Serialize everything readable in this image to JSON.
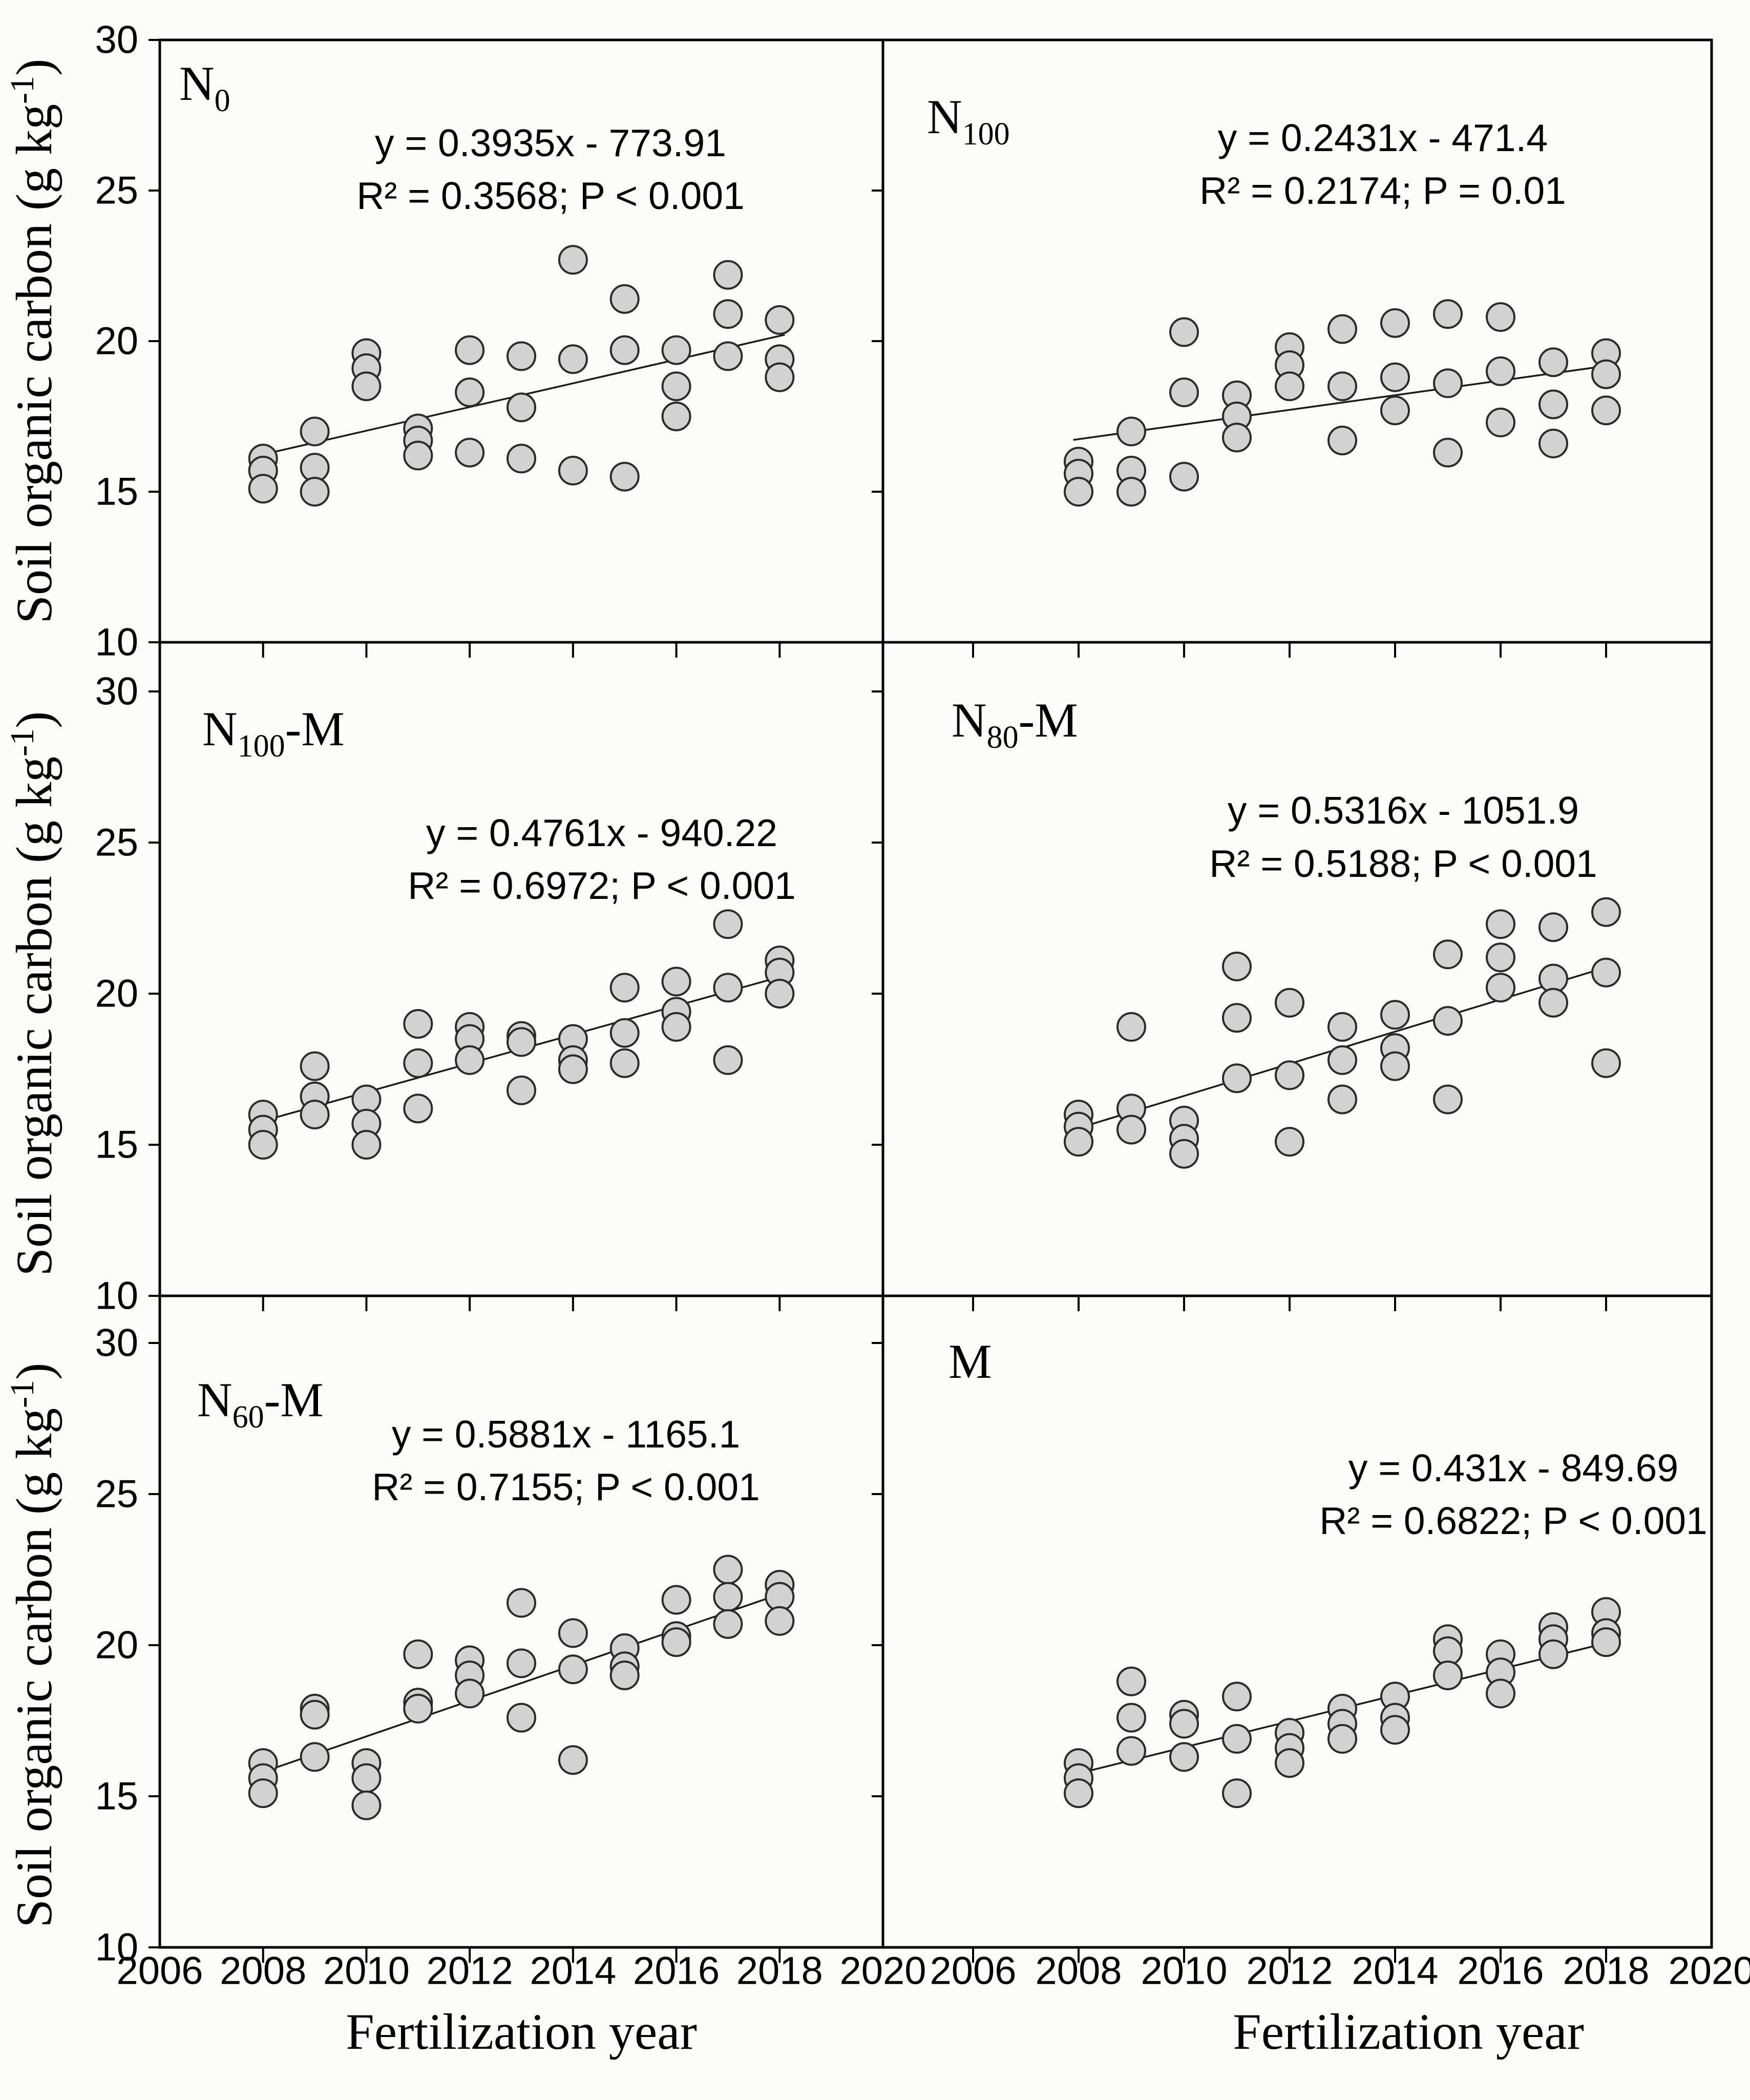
{
  "figure": {
    "y_axis_title": {
      "prefix": "Soil organic carbon (g kg",
      "sup": "-1",
      "suffix": ")"
    },
    "x_axis_title": "Fertilization year",
    "y_ticks": [
      30,
      25,
      20,
      15,
      10
    ],
    "x_ticks": [
      2006,
      2008,
      2010,
      2012,
      2014,
      2016,
      2018,
      2020
    ],
    "colors": {
      "background": "#fcfcfa",
      "axis": "#000000",
      "text": "#000000",
      "marker_fill": "#d2d2d2",
      "marker_stroke": "#2b2b2b",
      "trend_line": "#1a1a1a"
    }
  },
  "chart_data": [
    {
      "type": "scatter",
      "label": {
        "base": "N",
        "sub": "0",
        "suffix": ""
      },
      "equation": "y = 0.3935x - 773.91",
      "stats": "R² = 0.3568; P < 0.001",
      "regression": {
        "slope": 0.3935,
        "intercept": -773.91,
        "x_start": 2008,
        "x_end": 2018
      },
      "xlabel": "Fertilization year",
      "ylabel": "Soil organic carbon (g kg-1)",
      "xlim": [
        2006,
        2020
      ],
      "ylim": [
        10,
        30
      ],
      "grid": false,
      "x_years": [
        2008,
        2009,
        2010,
        2011,
        2012,
        2013,
        2014,
        2015,
        2016,
        2017,
        2018
      ],
      "series_values": [
        [
          16.1,
          15.7,
          15.1
        ],
        [
          17.0,
          15.8,
          15.0
        ],
        [
          19.6,
          19.1,
          18.5
        ],
        [
          17.1,
          16.7,
          16.2
        ],
        [
          19.7,
          18.3,
          16.3
        ],
        [
          19.5,
          17.8,
          16.1
        ],
        [
          22.7,
          19.4,
          15.7
        ],
        [
          21.4,
          19.7,
          15.5
        ],
        [
          19.7,
          18.5,
          17.5
        ],
        [
          22.2,
          20.9,
          19.5
        ],
        [
          20.7,
          19.4,
          18.8
        ]
      ]
    },
    {
      "type": "scatter",
      "label": {
        "base": "N",
        "sub": "100",
        "suffix": ""
      },
      "equation": "y = 0.2431x - 471.4",
      "stats": "R² = 0.2174; P = 0.01",
      "regression": {
        "slope": 0.2431,
        "intercept": -471.4,
        "x_start": 2008,
        "x_end": 2018
      },
      "xlabel": "Fertilization year",
      "ylabel": "Soil organic carbon (g kg-1)",
      "xlim": [
        2004,
        2020
      ],
      "ylim": [
        10,
        30
      ],
      "grid": false,
      "x_years": [
        2008,
        2009,
        2010,
        2011,
        2012,
        2013,
        2014,
        2015,
        2016,
        2017,
        2018
      ],
      "series_values": [
        [
          16.0,
          15.6,
          15.0
        ],
        [
          17.0,
          15.7,
          15.0
        ],
        [
          20.3,
          18.3,
          15.5
        ],
        [
          18.2,
          17.5,
          16.8
        ],
        [
          19.8,
          19.2,
          18.5
        ],
        [
          20.4,
          18.5,
          16.7
        ],
        [
          20.6,
          18.8,
          17.7
        ],
        [
          20.9,
          18.6,
          16.3
        ],
        [
          20.8,
          19.0,
          17.3
        ],
        [
          19.3,
          17.9,
          16.6
        ],
        [
          19.6,
          18.9,
          17.7
        ]
      ]
    },
    {
      "type": "scatter",
      "label": {
        "base": "N",
        "sub": "100",
        "suffix": "-M"
      },
      "equation": "y = 0.4761x - 940.22",
      "stats": "R² = 0.6972; P < 0.001",
      "regression": {
        "slope": 0.4761,
        "intercept": -940.22,
        "x_start": 2008,
        "x_end": 2018
      },
      "xlabel": "Fertilization year",
      "ylabel": "Soil organic carbon (g kg-1)",
      "xlim": [
        2006,
        2020
      ],
      "ylim": [
        10,
        30
      ],
      "grid": false,
      "x_years": [
        2008,
        2009,
        2010,
        2011,
        2012,
        2013,
        2014,
        2015,
        2016,
        2017,
        2018
      ],
      "series_values": [
        [
          16.0,
          15.5,
          15.0
        ],
        [
          17.6,
          16.6,
          16.0
        ],
        [
          16.5,
          15.7,
          15.0
        ],
        [
          19.0,
          17.7,
          16.2
        ],
        [
          18.9,
          18.5,
          17.8
        ],
        [
          18.6,
          18.4,
          16.8
        ],
        [
          18.5,
          17.8,
          17.5
        ],
        [
          20.2,
          18.7,
          17.7
        ],
        [
          20.4,
          19.4,
          18.9
        ],
        [
          22.3,
          20.2,
          17.8
        ],
        [
          21.1,
          20.7,
          20.0
        ]
      ]
    },
    {
      "type": "scatter",
      "label": {
        "base": "N",
        "sub": "80",
        "suffix": "-M"
      },
      "equation": "y = 0.5316x - 1051.9",
      "stats": "R² = 0.5188; P < 0.001",
      "regression": {
        "slope": 0.5316,
        "intercept": -1051.9,
        "x_start": 2008,
        "x_end": 2018
      },
      "xlabel": "Fertilization year",
      "ylabel": "Soil organic carbon (g kg-1)",
      "xlim": [
        2004,
        2020
      ],
      "ylim": [
        10,
        30
      ],
      "grid": false,
      "x_years": [
        2008,
        2009,
        2010,
        2011,
        2012,
        2013,
        2014,
        2015,
        2016,
        2017,
        2018
      ],
      "series_values": [
        [
          16.0,
          15.6,
          15.1
        ],
        [
          18.9,
          16.2,
          15.5
        ],
        [
          15.8,
          15.2,
          14.7
        ],
        [
          20.9,
          19.2,
          17.2
        ],
        [
          19.7,
          17.3,
          15.1
        ],
        [
          18.9,
          17.8,
          16.5
        ],
        [
          19.3,
          18.2,
          17.6
        ],
        [
          21.3,
          19.1,
          16.5
        ],
        [
          22.3,
          21.2,
          20.2
        ],
        [
          22.2,
          20.5,
          19.7
        ],
        [
          22.7,
          20.7,
          17.7
        ]
      ]
    },
    {
      "type": "scatter",
      "label": {
        "base": "N",
        "sub": "60",
        "suffix": "-M"
      },
      "equation": "y = 0.5881x - 1165.1",
      "stats": "R² = 0.7155; P < 0.001",
      "regression": {
        "slope": 0.5881,
        "intercept": -1165.1,
        "x_start": 2008,
        "x_end": 2018
      },
      "xlabel": "Fertilization year",
      "ylabel": "Soil organic carbon (g kg-1)",
      "xlim": [
        2006,
        2020
      ],
      "ylim": [
        10,
        30
      ],
      "grid": false,
      "x_years": [
        2008,
        2009,
        2010,
        2011,
        2012,
        2013,
        2014,
        2015,
        2016,
        2017,
        2018
      ],
      "series_values": [
        [
          16.1,
          15.6,
          15.1
        ],
        [
          17.9,
          17.7,
          16.3
        ],
        [
          16.1,
          15.6,
          14.7
        ],
        [
          19.7,
          18.1,
          17.9
        ],
        [
          19.5,
          19.0,
          18.4
        ],
        [
          21.4,
          19.4,
          17.6
        ],
        [
          20.4,
          19.2,
          16.2
        ],
        [
          19.9,
          19.3,
          19.0
        ],
        [
          21.5,
          20.3,
          20.1
        ],
        [
          22.5,
          21.6,
          20.7
        ],
        [
          22.0,
          21.6,
          20.8
        ]
      ]
    },
    {
      "type": "scatter",
      "label": {
        "base": "M",
        "sub": "",
        "suffix": ""
      },
      "equation": "y = 0.431x - 849.69",
      "stats": "R² = 0.6822; P < 0.001",
      "regression": {
        "slope": 0.431,
        "intercept": -849.69,
        "x_start": 2008,
        "x_end": 2018
      },
      "xlabel": "Fertilization year",
      "ylabel": "Soil organic carbon (g kg-1)",
      "xlim": [
        2004,
        2020
      ],
      "ylim": [
        10,
        30
      ],
      "grid": false,
      "x_years": [
        2008,
        2009,
        2010,
        2011,
        2012,
        2013,
        2014,
        2015,
        2016,
        2017,
        2018
      ],
      "series_values": [
        [
          16.1,
          15.6,
          15.1
        ],
        [
          18.8,
          17.6,
          16.5
        ],
        [
          17.7,
          17.4,
          16.3
        ],
        [
          18.3,
          16.9,
          15.1
        ],
        [
          17.1,
          16.6,
          16.1
        ],
        [
          17.9,
          17.4,
          16.9
        ],
        [
          18.3,
          17.6,
          17.2
        ],
        [
          20.2,
          19.8,
          19.0
        ],
        [
          19.7,
          19.1,
          18.4
        ],
        [
          20.6,
          20.2,
          19.7
        ],
        [
          21.1,
          20.4,
          20.1
        ]
      ]
    }
  ]
}
